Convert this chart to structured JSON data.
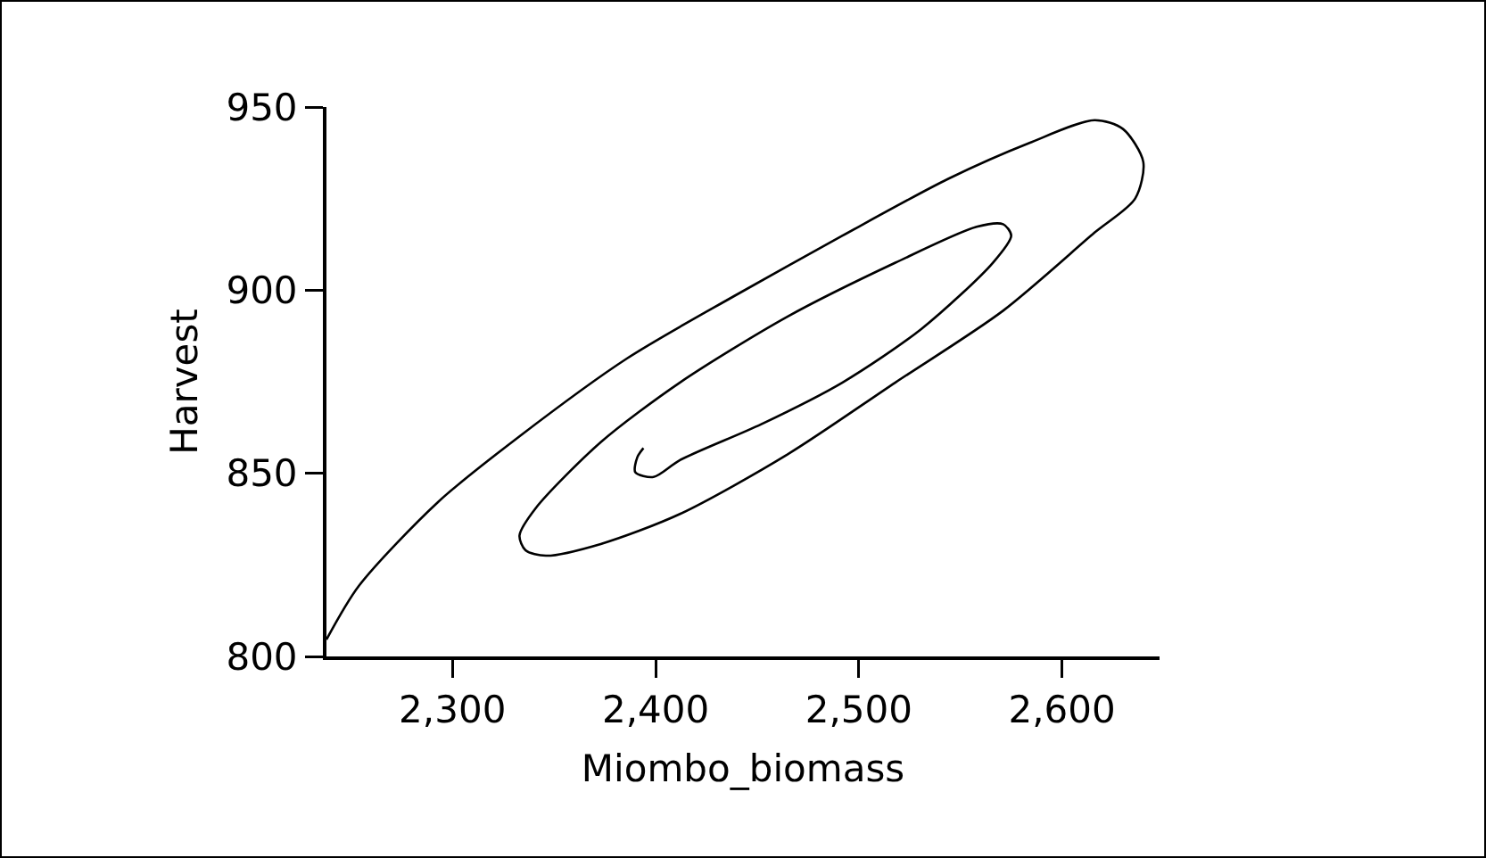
{
  "chart_data": {
    "type": "line",
    "xlabel": "Miombo_biomass",
    "ylabel": "Harvest",
    "xlim": [
      2238,
      2648
    ],
    "ylim": [
      800,
      950
    ],
    "xticks": [
      {
        "value": 2300,
        "label": "2,300"
      },
      {
        "value": 2400,
        "label": "2,400"
      },
      {
        "value": 2500,
        "label": "2,500"
      },
      {
        "value": 2600,
        "label": "2,600"
      }
    ],
    "yticks": [
      800,
      850,
      900,
      950
    ],
    "grid": false,
    "marker": "none",
    "line_style": "solid",
    "series": [
      {
        "color": "#000000",
        "x": [
          2238,
          2254,
          2293,
          2333,
          2386,
          2439,
          2492,
          2544,
          2584,
          2616,
          2630,
          2640,
          2636,
          2616,
          2571,
          2518,
          2465,
          2412,
          2373,
          2346,
          2336,
          2333,
          2341,
          2373,
          2412,
          2465,
          2518,
          2558,
          2571,
          2575,
          2566,
          2531,
          2492,
          2452,
          2412,
          2399,
          2390,
          2391,
          2394
        ],
        "values": [
          804.6,
          819.3,
          842.2,
          860.1,
          881.4,
          898.5,
          914.9,
          930.4,
          940.2,
          946.4,
          944,
          935,
          925,
          915.7,
          894.4,
          874.8,
          855.2,
          838.9,
          830.7,
          827.5,
          829,
          833,
          840.5,
          858.5,
          874.8,
          892.8,
          907.5,
          917.3,
          918,
          914.9,
          907.5,
          889.5,
          874.8,
          863.4,
          853.6,
          849,
          850.3,
          854.4,
          856.9
        ]
      }
    ]
  }
}
